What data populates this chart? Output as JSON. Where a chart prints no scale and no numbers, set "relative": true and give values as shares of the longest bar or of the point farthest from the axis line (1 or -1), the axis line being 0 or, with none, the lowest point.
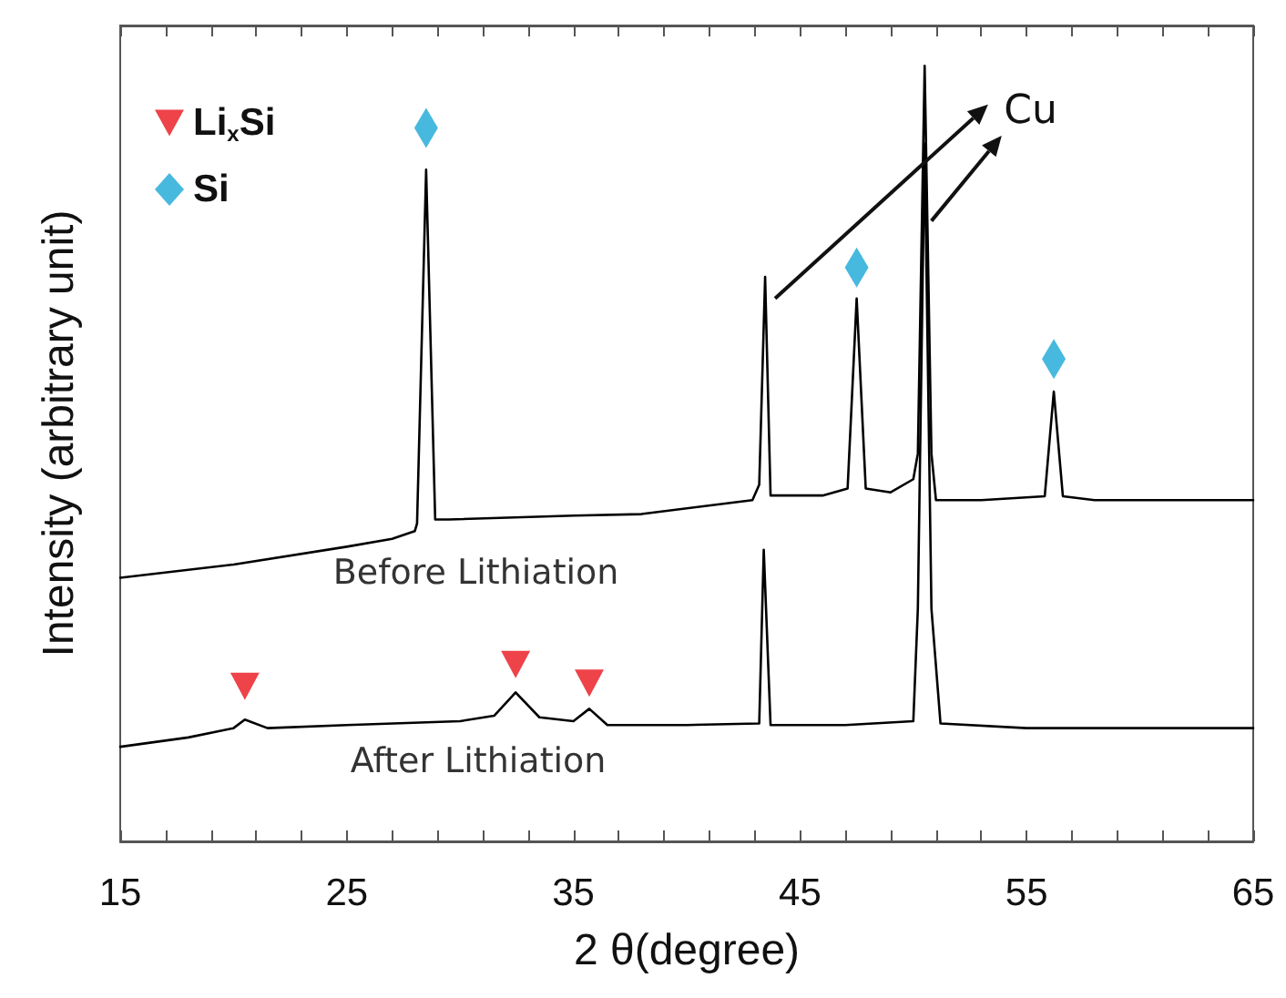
{
  "chart_data": {
    "type": "line",
    "relative": true,
    "xlabel": "2 θ(degree)",
    "ylabel": "Intensity (arbitrary unit)",
    "xlim": [
      15,
      65
    ],
    "xticks": [
      15,
      {
        "value": 17,
        "label": null
      },
      {
        "value": 19,
        "label": null
      },
      {
        "value": 21,
        "label": null
      },
      {
        "value": 23,
        "label": null
      },
      25,
      {
        "value": 27,
        "label": null
      },
      {
        "value": 29,
        "label": null
      },
      {
        "value": 31,
        "label": null
      },
      {
        "value": 33,
        "label": null
      },
      35,
      {
        "value": 37,
        "label": null
      },
      {
        "value": 39,
        "label": null
      },
      {
        "value": 41,
        "label": null
      },
      {
        "value": 43,
        "label": null
      },
      45,
      {
        "value": 47,
        "label": null
      },
      {
        "value": 49,
        "label": null
      },
      {
        "value": 51,
        "label": null
      },
      {
        "value": 53,
        "label": null
      },
      55,
      {
        "value": 57,
        "label": null
      },
      {
        "value": 59,
        "label": null
      },
      {
        "value": 61,
        "label": null
      },
      {
        "value": 63,
        "label": null
      },
      65
    ],
    "grid": false,
    "legend": "top left",
    "annotations": [
      "Cu"
    ],
    "series": [
      {
        "name": "Before Lithiation",
        "color": "#000000",
        "marker": "none",
        "x": [
          15,
          20,
          25,
          27,
          28,
          28.1,
          28.5,
          28.9,
          29.5,
          35,
          38,
          42.9,
          43.2,
          43.46,
          43.7,
          44,
          46,
          47.1,
          47.5,
          47.9,
          49,
          50,
          50.2,
          50.5,
          50.8,
          51,
          53,
          55.8,
          56.2,
          56.6,
          58,
          65
        ],
        "values": [
          0.34,
          0.357,
          0.38,
          0.39,
          0.4,
          0.41,
          0.866,
          0.415,
          0.415,
          0.42,
          0.422,
          0.44,
          0.46,
          0.728,
          0.446,
          0.446,
          0.446,
          0.455,
          0.7,
          0.455,
          0.45,
          0.467,
          0.5,
          1.0,
          0.5,
          0.44,
          0.44,
          0.445,
          0.58,
          0.445,
          0.44,
          0.44
        ]
      },
      {
        "name": "After Lithiation",
        "color": "#000000",
        "marker": "none",
        "x": [
          15,
          18,
          20,
          20.5,
          21.5,
          25,
          30,
          31.5,
          32.45,
          33.5,
          35,
          35.7,
          36.5,
          40,
          43.2,
          43.4,
          43.7,
          47,
          50,
          50.2,
          50.5,
          50.8,
          51.2,
          55,
          65
        ],
        "values": [
          0.122,
          0.134,
          0.146,
          0.157,
          0.146,
          0.15,
          0.155,
          0.162,
          0.192,
          0.16,
          0.155,
          0.171,
          0.15,
          0.15,
          0.152,
          0.376,
          0.15,
          0.15,
          0.155,
          0.3,
          0.9,
          0.3,
          0.152,
          0.146,
          0.146
        ]
      },
      {
        "name": "Li$_{x}$Si",
        "color": "#e8141b",
        "type": "scatter",
        "marker": "triangle",
        "x": [
          20.5,
          32.45,
          35.7
        ],
        "values": [
          0.2,
          0.228,
          0.204
        ]
      },
      {
        "name": "Si",
        "color": "#1aa7d6",
        "type": "scatter",
        "marker": "diamond",
        "x": [
          28.5,
          47.5,
          56.2
        ],
        "values": [
          0.92,
          0.74,
          0.622
        ]
      }
    ]
  }
}
